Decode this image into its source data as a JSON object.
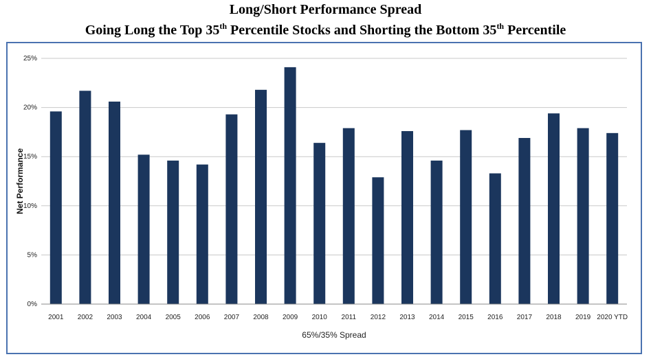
{
  "header": {
    "title_line1": "Long/Short Performance Spread",
    "title_line2_a": "Going Long the Top 35",
    "title_line2_sup1": "th",
    "title_line2_b": " Percentile Stocks and Shorting the Bottom 35",
    "title_line2_sup2": "th",
    "title_line2_c": " Percentile"
  },
  "chart_data": {
    "type": "bar",
    "title": "Long/Short Performance Spread",
    "subtitle": "Going Long the Top 35th Percentile Stocks and Shorting the Bottom 35th Percentile",
    "xlabel": "65%/35% Spread",
    "ylabel": "Net Performance",
    "ylim": [
      0,
      25
    ],
    "yticks": [
      "0%",
      "5%",
      "10%",
      "15%",
      "20%",
      "25%"
    ],
    "ytick_values": [
      0,
      5,
      10,
      15,
      20,
      25
    ],
    "grid": true,
    "bar_color": "#1b365d",
    "categories": [
      "2001",
      "2002",
      "2003",
      "2004",
      "2005",
      "2006",
      "2007",
      "2008",
      "2009",
      "2010",
      "2011",
      "2012",
      "2013",
      "2014",
      "2015",
      "2016",
      "2017",
      "2018",
      "2019",
      "2020 YTD"
    ],
    "values": [
      19.6,
      21.7,
      20.6,
      15.2,
      14.6,
      14.2,
      19.3,
      21.8,
      24.1,
      16.4,
      17.9,
      12.9,
      17.6,
      14.6,
      17.7,
      13.3,
      16.9,
      19.4,
      17.9,
      17.4
    ],
    "frame_color": "#4a72b0"
  }
}
